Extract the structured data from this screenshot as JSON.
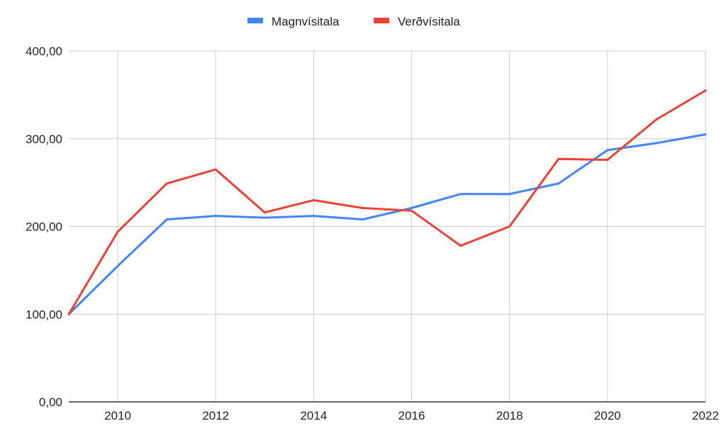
{
  "chart_data": {
    "type": "line",
    "title": "",
    "xlabel": "",
    "ylabel": "",
    "x": [
      2009,
      2010,
      2011,
      2012,
      2013,
      2014,
      2015,
      2016,
      2017,
      2018,
      2019,
      2020,
      2021,
      2022
    ],
    "xlim": [
      2009,
      2022
    ],
    "x_ticks": [
      2010,
      2012,
      2014,
      2016,
      2018,
      2020,
      2022
    ],
    "x_tick_labels": [
      "2010",
      "2012",
      "2014",
      "2016",
      "2018",
      "2020",
      "2022"
    ],
    "ylim": [
      0,
      400
    ],
    "y_ticks": [
      0,
      100,
      200,
      300,
      400
    ],
    "y_tick_labels": [
      "0,00",
      "100,00",
      "200,00",
      "300,00",
      "400,00"
    ],
    "grid": true,
    "legend_position": "top-center",
    "series": [
      {
        "name": "Magnvísitala",
        "color": "#4285f4",
        "values": [
          100,
          155,
          208,
          212,
          210,
          212,
          208,
          221,
          237,
          237,
          249,
          287,
          295,
          305
        ]
      },
      {
        "name": "Verðvísitala",
        "color": "#ea4335",
        "values": [
          100,
          194,
          249,
          265,
          216,
          230,
          221,
          218,
          178,
          200,
          277,
          276,
          322,
          355
        ]
      }
    ]
  }
}
